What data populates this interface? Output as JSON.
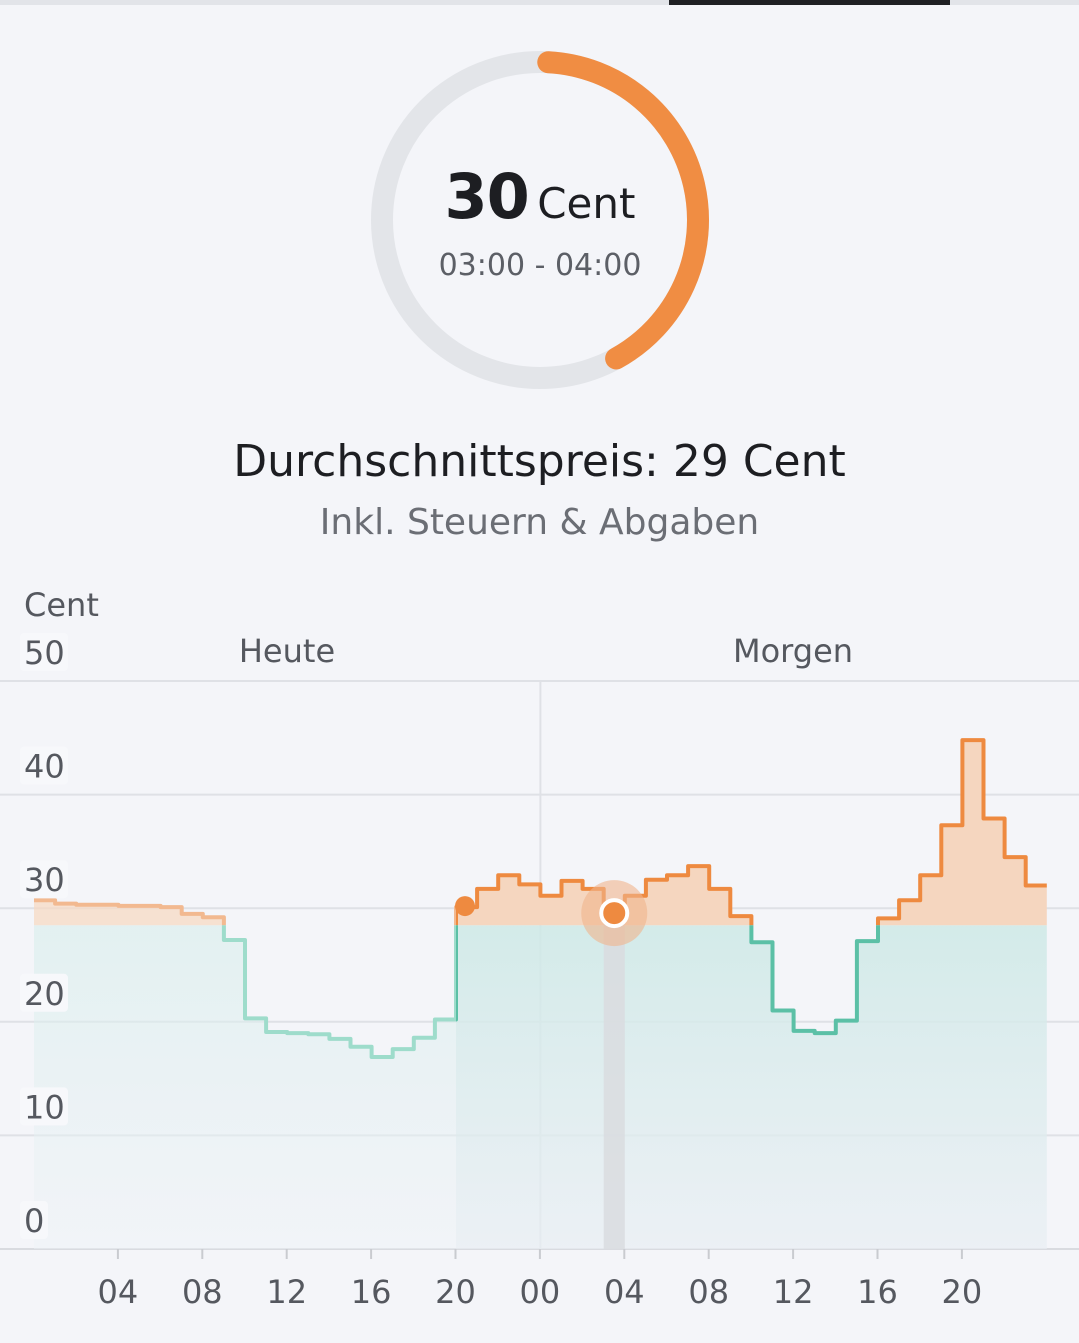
{
  "gauge": {
    "value": "30",
    "unit": "Cent",
    "time_range": "03:00 - 04:00",
    "fill_fraction": 0.42,
    "track_color": "#e3e5e9",
    "fill_color": "#f08d43"
  },
  "summary": {
    "average_price": "Durchschnittspreis: 29 Cent",
    "note": "Inkl. Steuern & Abgaben"
  },
  "chart_data": {
    "type": "line",
    "step": true,
    "ylabel": "Cent",
    "ylim": [
      0,
      50
    ],
    "yticks": [
      "0",
      "10",
      "20",
      "30",
      "40",
      "50"
    ],
    "xticks": [
      "04",
      "08",
      "12",
      "16",
      "20",
      "00",
      "04",
      "08",
      "12",
      "16",
      "20"
    ],
    "day_labels": [
      "Heute",
      "Morgen"
    ],
    "threshold": 28.5,
    "selected_hour": 27,
    "current_hour": 20,
    "colors": {
      "above": "#ee8a40",
      "below": "#5bc0a6"
    },
    "hourly_values": [
      30.7,
      30.4,
      30.3,
      30.3,
      30.2,
      30.2,
      30.1,
      29.5,
      29.2,
      27.2,
      20.3,
      19.1,
      19.0,
      18.9,
      18.5,
      17.8,
      16.9,
      17.6,
      18.6,
      20.2,
      30.1,
      31.7,
      32.9,
      32.1,
      31.1,
      32.4,
      31.7,
      30.1,
      31.1,
      32.5,
      32.9,
      33.7,
      31.7,
      29.3,
      27.0,
      21.0,
      19.2,
      19.0,
      20.1,
      27.1,
      29.1,
      30.7,
      32.9,
      37.3,
      44.8,
      37.9,
      34.5,
      32.0
    ]
  }
}
